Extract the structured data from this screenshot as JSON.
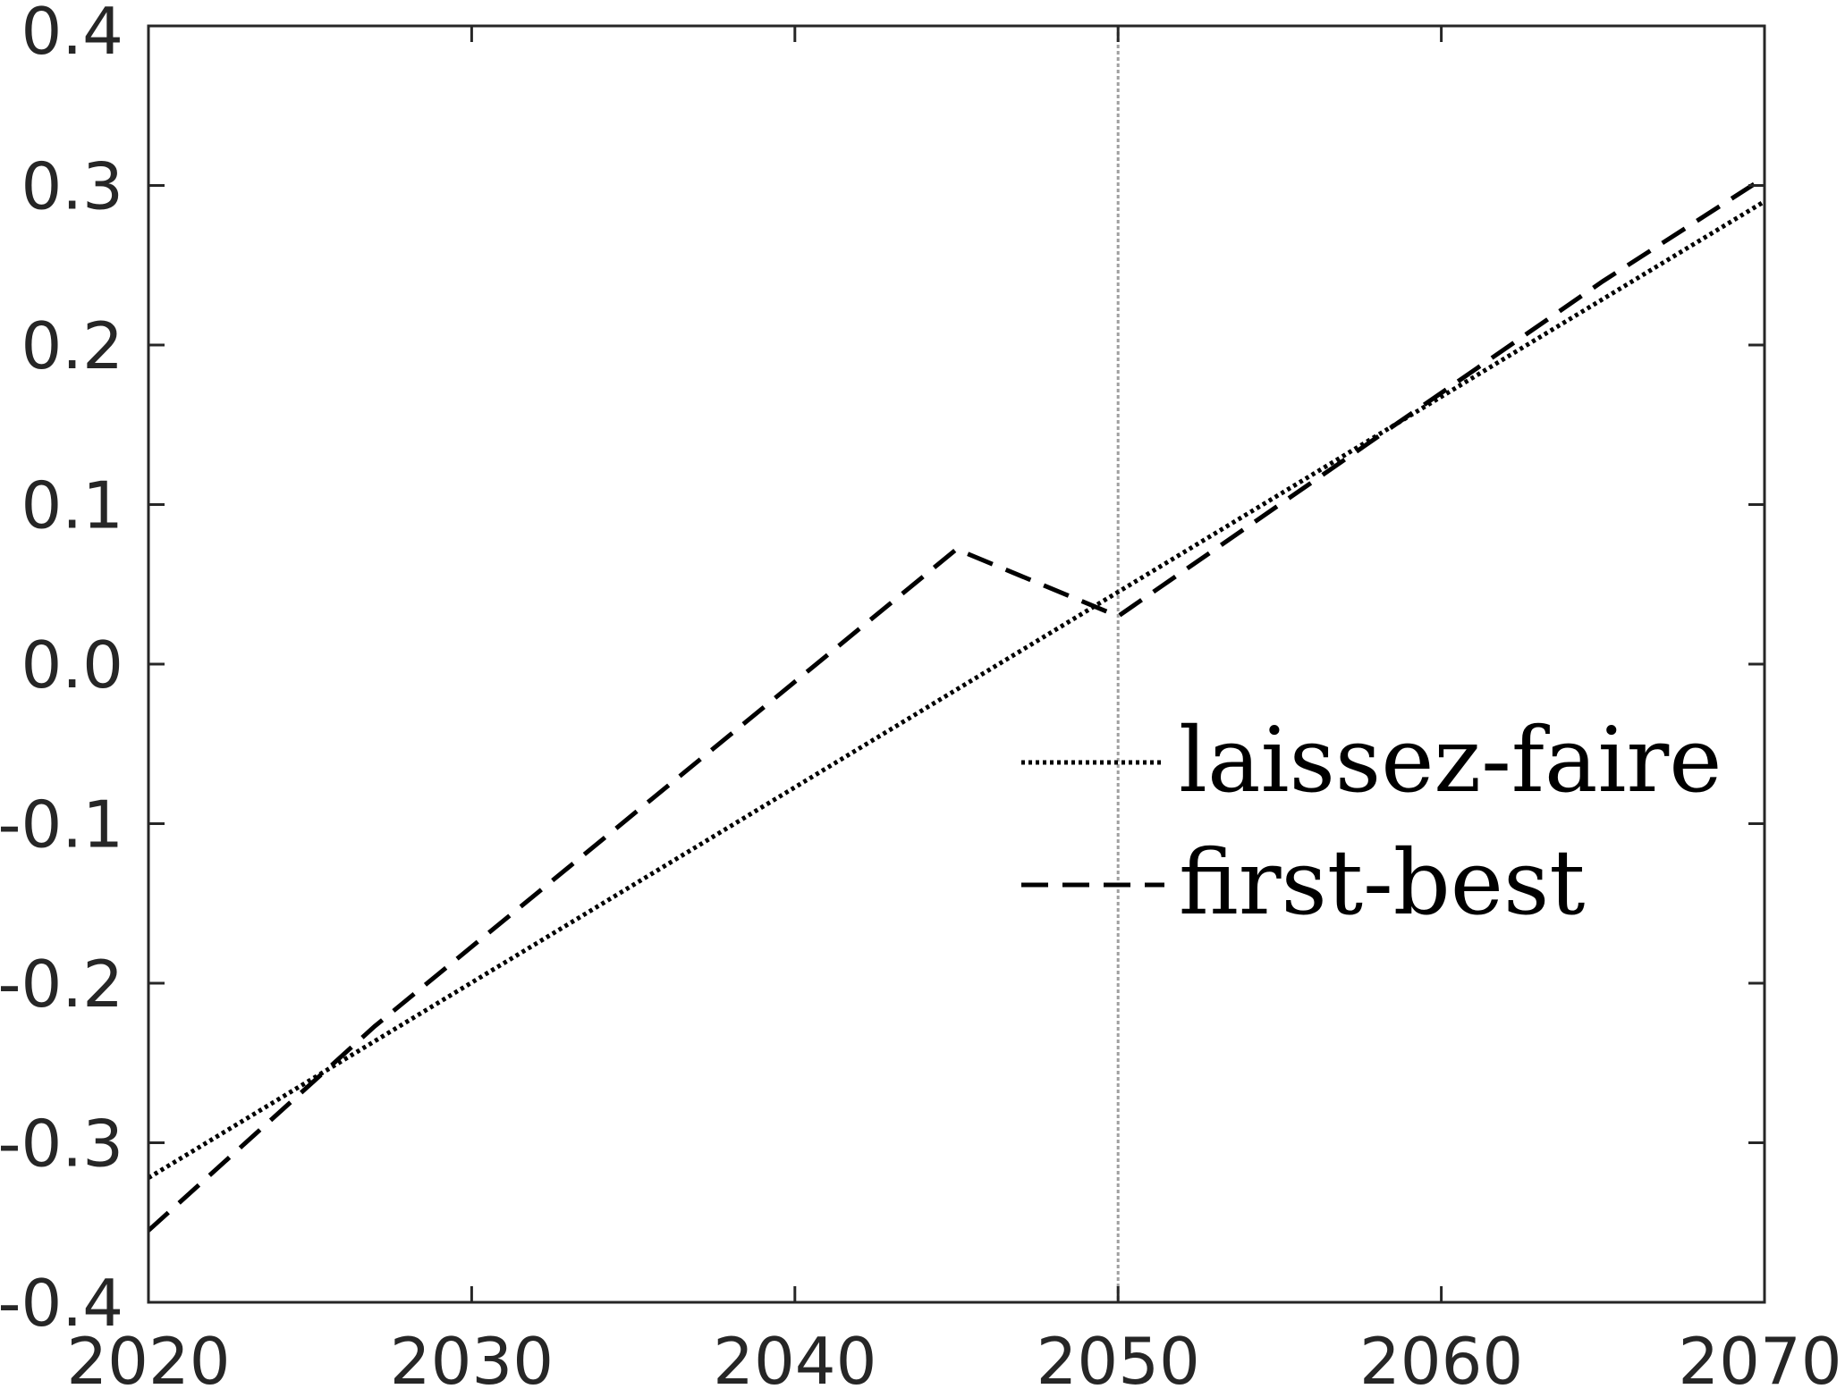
{
  "chart_data": {
    "type": "line",
    "title": "",
    "xlabel": "",
    "ylabel": "",
    "xlim": [
      2020,
      2070
    ],
    "ylim": [
      -0.4,
      0.4
    ],
    "xticks": [
      2020,
      2030,
      2040,
      2050,
      2060,
      2070
    ],
    "yticks": [
      -0.4,
      -0.3,
      -0.2,
      -0.1,
      0.0,
      0.1,
      0.2,
      0.3,
      0.4
    ],
    "xtick_labels": [
      "2020",
      "2030",
      "2040",
      "2050",
      "2060",
      "2070"
    ],
    "ytick_labels": [
      "-0.4",
      "-0.3",
      "-0.2",
      "-0.1",
      "0.0",
      "0.1",
      "0.2",
      "0.3",
      "0.4"
    ],
    "grid": false,
    "legend_position": "center-right",
    "reference_line": {
      "x": 2050,
      "color": "#a0a0a0",
      "style": "dotted"
    },
    "series": [
      {
        "name": "laissez-faire",
        "style": "dotted",
        "color": "#000000",
        "x": [
          2020,
          2070
        ],
        "y": [
          -0.322,
          0.29
        ]
      },
      {
        "name": "first-best",
        "style": "dashed",
        "color": "#000000",
        "x": [
          2020,
          2027,
          2045,
          2050,
          2065,
          2070
        ],
        "y": [
          -0.355,
          -0.227,
          0.072,
          0.03,
          0.24,
          0.305
        ]
      }
    ]
  }
}
